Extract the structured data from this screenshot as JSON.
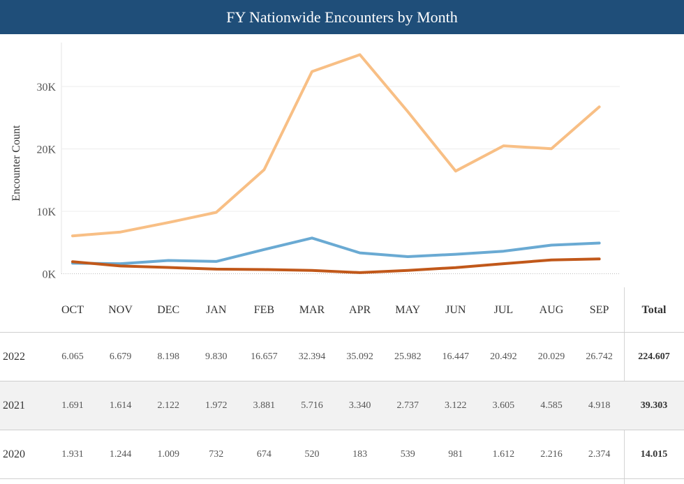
{
  "title": "FY Nationwide Encounters by Month",
  "chart_data": {
    "type": "line",
    "title": "FY Nationwide Encounters by Month",
    "ylabel": "Encounter Count",
    "xlabel": "",
    "ylim": [
      0,
      37500
    ],
    "yticks": [
      {
        "value": 0,
        "label": "0K"
      },
      {
        "value": 10000,
        "label": "10K"
      },
      {
        "value": 20000,
        "label": "20K"
      },
      {
        "value": 30000,
        "label": "30K"
      }
    ],
    "categories": [
      "OCT",
      "NOV",
      "DEC",
      "JAN",
      "FEB",
      "MAR",
      "APR",
      "MAY",
      "JUN",
      "JUL",
      "AUG",
      "SEP"
    ],
    "grid": "horizontal",
    "series": [
      {
        "name": "2022",
        "color": "#f8bf85",
        "values": [
          6065,
          6679,
          8198,
          9830,
          16657,
          32394,
          35092,
          25982,
          16447,
          20492,
          20029,
          26742
        ]
      },
      {
        "name": "2021",
        "color": "#6aaad3",
        "values": [
          1691,
          1614,
          2122,
          1972,
          3881,
          5716,
          3340,
          2737,
          3122,
          3605,
          4585,
          4918
        ]
      },
      {
        "name": "2020",
        "color": "#c1581a",
        "values": [
          1931,
          1244,
          1009,
          732,
          674,
          520,
          183,
          539,
          981,
          1612,
          2216,
          2374
        ]
      }
    ]
  },
  "table": {
    "total_header": "Total",
    "rows": [
      {
        "year": "2022",
        "values": [
          "6.065",
          "6.679",
          "8.198",
          "9.830",
          "16.657",
          "32.394",
          "35.092",
          "25.982",
          "16.447",
          "20.492",
          "20.029",
          "26.742"
        ],
        "total": "224.607"
      },
      {
        "year": "2021",
        "values": [
          "1.691",
          "1.614",
          "2.122",
          "1.972",
          "3.881",
          "5.716",
          "3.340",
          "2.737",
          "3.122",
          "3.605",
          "4.585",
          "4.918"
        ],
        "total": "39.303"
      },
      {
        "year": "2020",
        "values": [
          "1.931",
          "1.244",
          "1.009",
          "732",
          "674",
          "520",
          "183",
          "539",
          "981",
          "1.612",
          "2.216",
          "2.374"
        ],
        "total": "14.015"
      }
    ]
  }
}
